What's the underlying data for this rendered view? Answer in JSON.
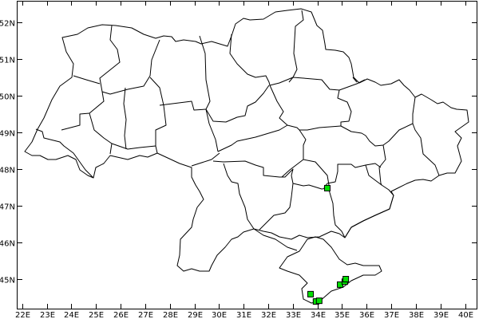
{
  "map": {
    "colors": {
      "background": "#ffffff",
      "land": "#ffffff",
      "highlight": "#c0c0c0",
      "border": "#000000",
      "marker": "#00e000"
    },
    "lon_ticks": [
      {
        "value": 22,
        "label": "22E"
      },
      {
        "value": 23,
        "label": "23E"
      },
      {
        "value": 24,
        "label": "24E"
      },
      {
        "value": 25,
        "label": "25E"
      },
      {
        "value": 26,
        "label": "26E"
      },
      {
        "value": 27,
        "label": "27E"
      },
      {
        "value": 28,
        "label": "28E"
      },
      {
        "value": 29,
        "label": "29E"
      },
      {
        "value": 30,
        "label": "30E"
      },
      {
        "value": 31,
        "label": "31E"
      },
      {
        "value": 32,
        "label": "32E"
      },
      {
        "value": 33,
        "label": "33E"
      },
      {
        "value": 34,
        "label": "34E"
      },
      {
        "value": 35,
        "label": "35E"
      },
      {
        "value": 36,
        "label": "36E"
      },
      {
        "value": 37,
        "label": "37E"
      },
      {
        "value": 38,
        "label": "38E"
      },
      {
        "value": 39,
        "label": "39E"
      },
      {
        "value": 40,
        "label": "40E"
      }
    ],
    "lat_ticks": [
      {
        "value": 52,
        "label": "52N"
      },
      {
        "value": 51,
        "label": "51N"
      },
      {
        "value": 50,
        "label": "50N"
      },
      {
        "value": 49,
        "label": "49N"
      },
      {
        "value": 48,
        "label": "48N"
      },
      {
        "value": 47,
        "label": "47N"
      },
      {
        "value": 46,
        "label": "46N"
      },
      {
        "value": 45,
        "label": "45N"
      }
    ],
    "highlighted_regions": [
      "zaporizhzhia",
      "crimea"
    ],
    "markers": [
      {
        "lon": 34.4,
        "lat": 47.48
      },
      {
        "lon": 33.72,
        "lat": 44.59
      },
      {
        "lon": 33.94,
        "lat": 44.39
      },
      {
        "lon": 34.07,
        "lat": 44.41
      },
      {
        "lon": 34.92,
        "lat": 44.85
      },
      {
        "lon": 35.11,
        "lat": 44.93
      },
      {
        "lon": 35.15,
        "lat": 45.0
      }
    ]
  }
}
